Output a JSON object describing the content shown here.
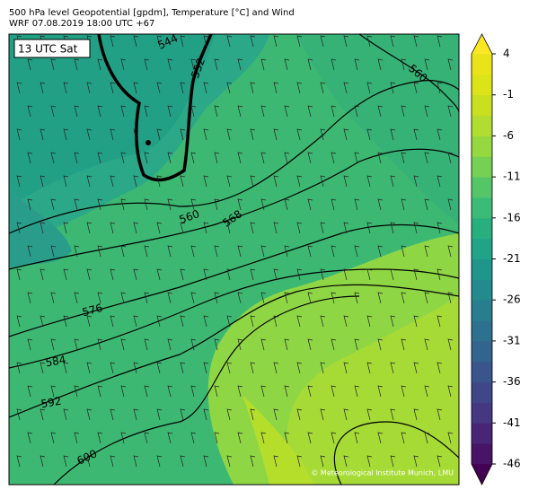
{
  "header": {
    "title": "500 hPa level Geopotential [gpdm], Temperature [°C] and Wind",
    "subtitle": "WRF 07.08.2019 18:00 UTC +67"
  },
  "map": {
    "time_label": "13 UTC Sat",
    "credit": "© Meteorological Institute Munich, LMU",
    "contour_labels": [
      544,
      552,
      560,
      560,
      568,
      576,
      584,
      592,
      600
    ]
  },
  "colorbar": {
    "ticks": [
      4,
      -1,
      -6,
      -11,
      -16,
      -21,
      -26,
      -31,
      -36,
      -41,
      -46
    ],
    "under_color": "#440154",
    "over_color": "#fde725",
    "band_colors": [
      "#481467",
      "#482576",
      "#453781",
      "#3f4788",
      "#39558c",
      "#32648e",
      "#2d718e",
      "#287d8e",
      "#238a8d",
      "#1f968b",
      "#20a386",
      "#29af7f",
      "#3bbb75",
      "#55c667",
      "#75d054",
      "#95d840",
      "#b0dd2f",
      "#c8e020",
      "#dce318",
      "#e8e419"
    ]
  }
}
